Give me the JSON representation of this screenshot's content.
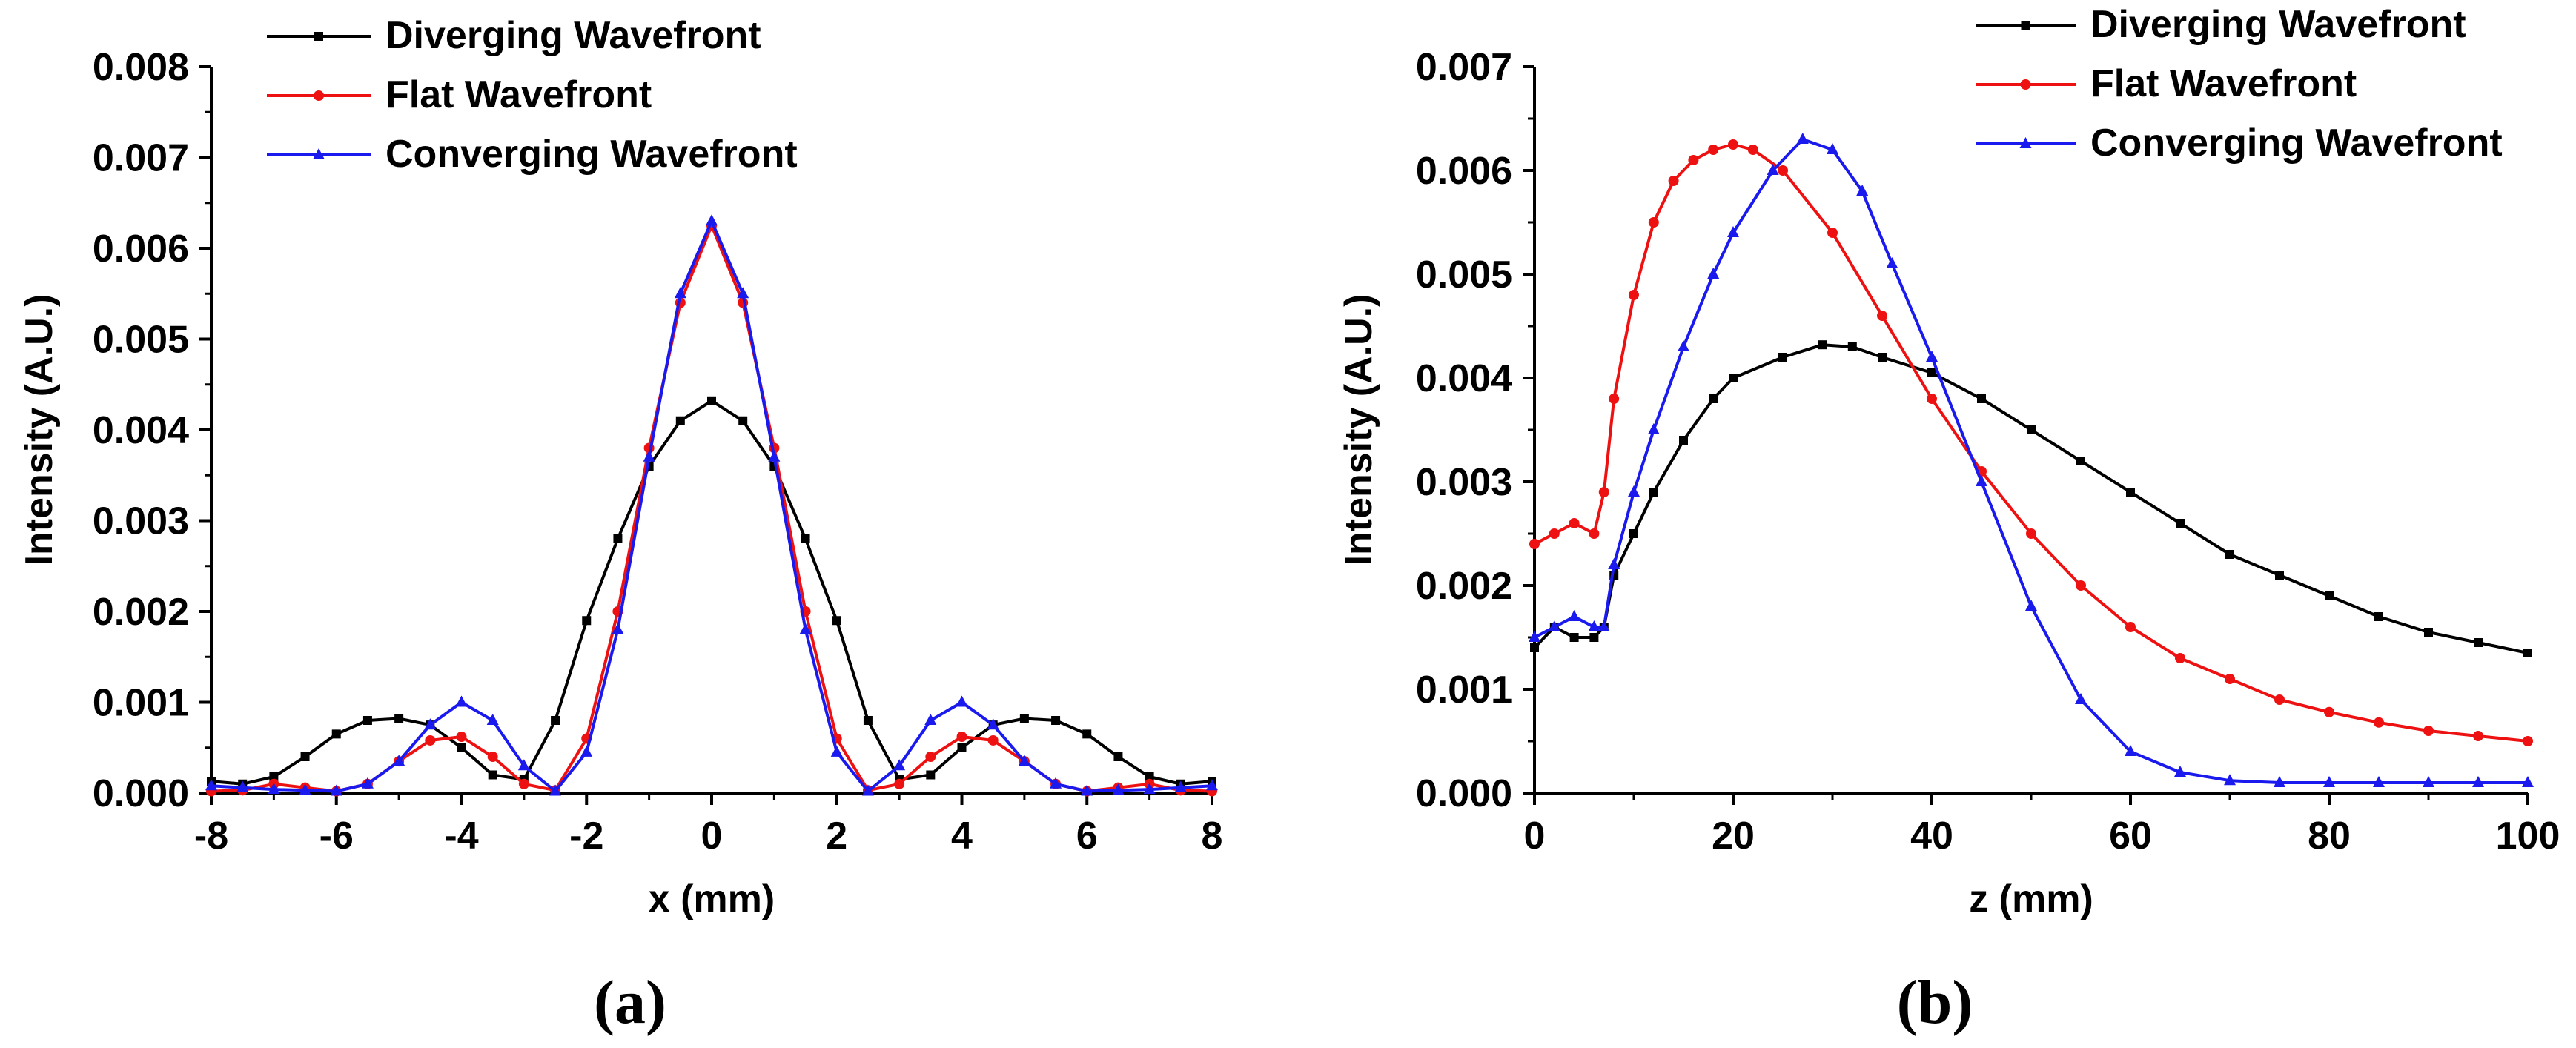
{
  "chart_data": [
    {
      "type": "line",
      "caption": "(a)",
      "xlabel": "x (mm)",
      "ylabel": "Intensity (A.U.)",
      "xlim": [
        -8,
        8
      ],
      "ylim": [
        0,
        0.008
      ],
      "xticks": [
        "-8",
        "-6",
        "-4",
        "-2",
        "0",
        "2",
        "4",
        "6",
        "8"
      ],
      "yticks": [
        "0.000",
        "0.001",
        "0.002",
        "0.003",
        "0.004",
        "0.005",
        "0.006",
        "0.007",
        "0.008"
      ],
      "legend_position": "top-left",
      "grid": false,
      "series": [
        {
          "name": "Diverging Wavefront",
          "color": "#000000",
          "marker": "square",
          "x": [
            -8,
            -7.5,
            -7,
            -6.5,
            -6,
            -5.5,
            -5,
            -4.5,
            -4,
            -3.5,
            -3,
            -2.5,
            -2,
            -1.5,
            -1,
            -0.5,
            0,
            0.5,
            1,
            1.5,
            2,
            2.5,
            3,
            3.5,
            4,
            4.5,
            5,
            5.5,
            6,
            6.5,
            7,
            7.5,
            8
          ],
          "y": [
            0.00013,
            0.0001,
            0.00018,
            0.0004,
            0.00065,
            0.0008,
            0.00082,
            0.00075,
            0.0005,
            0.0002,
            0.00015,
            0.0008,
            0.0019,
            0.0028,
            0.0036,
            0.0041,
            0.00432,
            0.0041,
            0.0036,
            0.0028,
            0.0019,
            0.0008,
            0.00015,
            0.0002,
            0.0005,
            0.00075,
            0.00082,
            0.0008,
            0.00065,
            0.0004,
            0.00018,
            0.0001,
            0.00013
          ]
        },
        {
          "name": "Flat Wavefront",
          "color": "#ee1111",
          "marker": "circle",
          "x": [
            -8,
            -7.5,
            -7,
            -6.5,
            -6,
            -5.5,
            -5,
            -4.5,
            -4,
            -3.5,
            -3,
            -2.5,
            -2,
            -1.5,
            -1,
            -0.5,
            0,
            0.5,
            1,
            1.5,
            2,
            2.5,
            3,
            3.5,
            4,
            4.5,
            5,
            5.5,
            6,
            6.5,
            7,
            7.5,
            8
          ],
          "y": [
            2e-05,
            3e-05,
            0.0001,
            6e-05,
            2e-05,
            0.0001,
            0.00035,
            0.00058,
            0.00062,
            0.0004,
            0.0001,
            3e-05,
            0.0006,
            0.002,
            0.0038,
            0.0054,
            0.00625,
            0.0054,
            0.0038,
            0.002,
            0.0006,
            3e-05,
            0.0001,
            0.0004,
            0.00062,
            0.00058,
            0.00035,
            0.0001,
            2e-05,
            6e-05,
            0.0001,
            3e-05,
            2e-05
          ]
        },
        {
          "name": "Converging Wavefront",
          "color": "#1a1aee",
          "marker": "triangle",
          "x": [
            -8,
            -7.5,
            -7,
            -6.5,
            -6,
            -5.5,
            -5,
            -4.5,
            -4,
            -3.5,
            -3,
            -2.5,
            -2,
            -1.5,
            -1,
            -0.5,
            0,
            0.5,
            1,
            1.5,
            2,
            2.5,
            3,
            3.5,
            4,
            4.5,
            5,
            5.5,
            6,
            6.5,
            7,
            7.5,
            8
          ],
          "y": [
            8e-05,
            6e-05,
            4e-05,
            3e-05,
            2e-05,
            0.0001,
            0.00035,
            0.00075,
            0.001,
            0.0008,
            0.0003,
            2e-05,
            0.00045,
            0.0018,
            0.0037,
            0.0055,
            0.0063,
            0.0055,
            0.0037,
            0.0018,
            0.00045,
            2e-05,
            0.0003,
            0.0008,
            0.001,
            0.00075,
            0.00035,
            0.0001,
            2e-05,
            3e-05,
            4e-05,
            6e-05,
            8e-05
          ]
        }
      ]
    },
    {
      "type": "line",
      "caption": "(b)",
      "xlabel": "z (mm)",
      "ylabel": "Intensity (A.U.)",
      "xlim": [
        0,
        100
      ],
      "ylim": [
        0,
        0.007
      ],
      "xticks": [
        "0",
        "20",
        "40",
        "60",
        "80",
        "100"
      ],
      "yticks": [
        "0.000",
        "0.001",
        "0.002",
        "0.003",
        "0.004",
        "0.005",
        "0.006",
        "0.007"
      ],
      "legend_position": "top-right",
      "grid": false,
      "series": [
        {
          "name": "Diverging Wavefront",
          "color": "#000000",
          "marker": "square",
          "x": [
            0,
            2,
            4,
            6,
            7,
            8,
            10,
            12,
            15,
            18,
            20,
            25,
            29,
            32,
            35,
            40,
            45,
            50,
            55,
            60,
            65,
            70,
            75,
            80,
            85,
            90,
            95,
            100
          ],
          "y": [
            0.0014,
            0.0016,
            0.0015,
            0.0015,
            0.0016,
            0.0021,
            0.0025,
            0.0029,
            0.0034,
            0.0038,
            0.004,
            0.0042,
            0.00432,
            0.0043,
            0.0042,
            0.00405,
            0.0038,
            0.0035,
            0.0032,
            0.0029,
            0.0026,
            0.0023,
            0.0021,
            0.0019,
            0.0017,
            0.00155,
            0.00145,
            0.00135
          ]
        },
        {
          "name": "Flat Wavefront",
          "color": "#ee1111",
          "marker": "circle",
          "x": [
            0,
            2,
            4,
            6,
            7,
            8,
            10,
            12,
            14,
            16,
            18,
            20,
            22,
            25,
            30,
            35,
            40,
            45,
            50,
            55,
            60,
            65,
            70,
            75,
            80,
            85,
            90,
            95,
            100
          ],
          "y": [
            0.0024,
            0.0025,
            0.0026,
            0.0025,
            0.0029,
            0.0038,
            0.0048,
            0.0055,
            0.0059,
            0.0061,
            0.0062,
            0.00625,
            0.0062,
            0.006,
            0.0054,
            0.0046,
            0.0038,
            0.0031,
            0.0025,
            0.002,
            0.0016,
            0.0013,
            0.0011,
            0.0009,
            0.00078,
            0.00068,
            0.0006,
            0.00055,
            0.0005
          ]
        },
        {
          "name": "Converging Wavefront",
          "color": "#1a1aee",
          "marker": "triangle",
          "x": [
            0,
            2,
            4,
            6,
            7,
            8,
            10,
            12,
            15,
            18,
            20,
            24,
            27,
            30,
            33,
            36,
            40,
            45,
            50,
            55,
            60,
            65,
            70,
            75,
            80,
            85,
            90,
            95,
            100
          ],
          "y": [
            0.0015,
            0.0016,
            0.0017,
            0.0016,
            0.0016,
            0.0022,
            0.0029,
            0.0035,
            0.0043,
            0.005,
            0.0054,
            0.006,
            0.0063,
            0.0062,
            0.0058,
            0.0051,
            0.0042,
            0.003,
            0.0018,
            0.0009,
            0.0004,
            0.0002,
            0.00012,
            0.0001,
            0.0001,
            0.0001,
            0.0001,
            0.0001,
            0.0001
          ]
        }
      ]
    }
  ]
}
